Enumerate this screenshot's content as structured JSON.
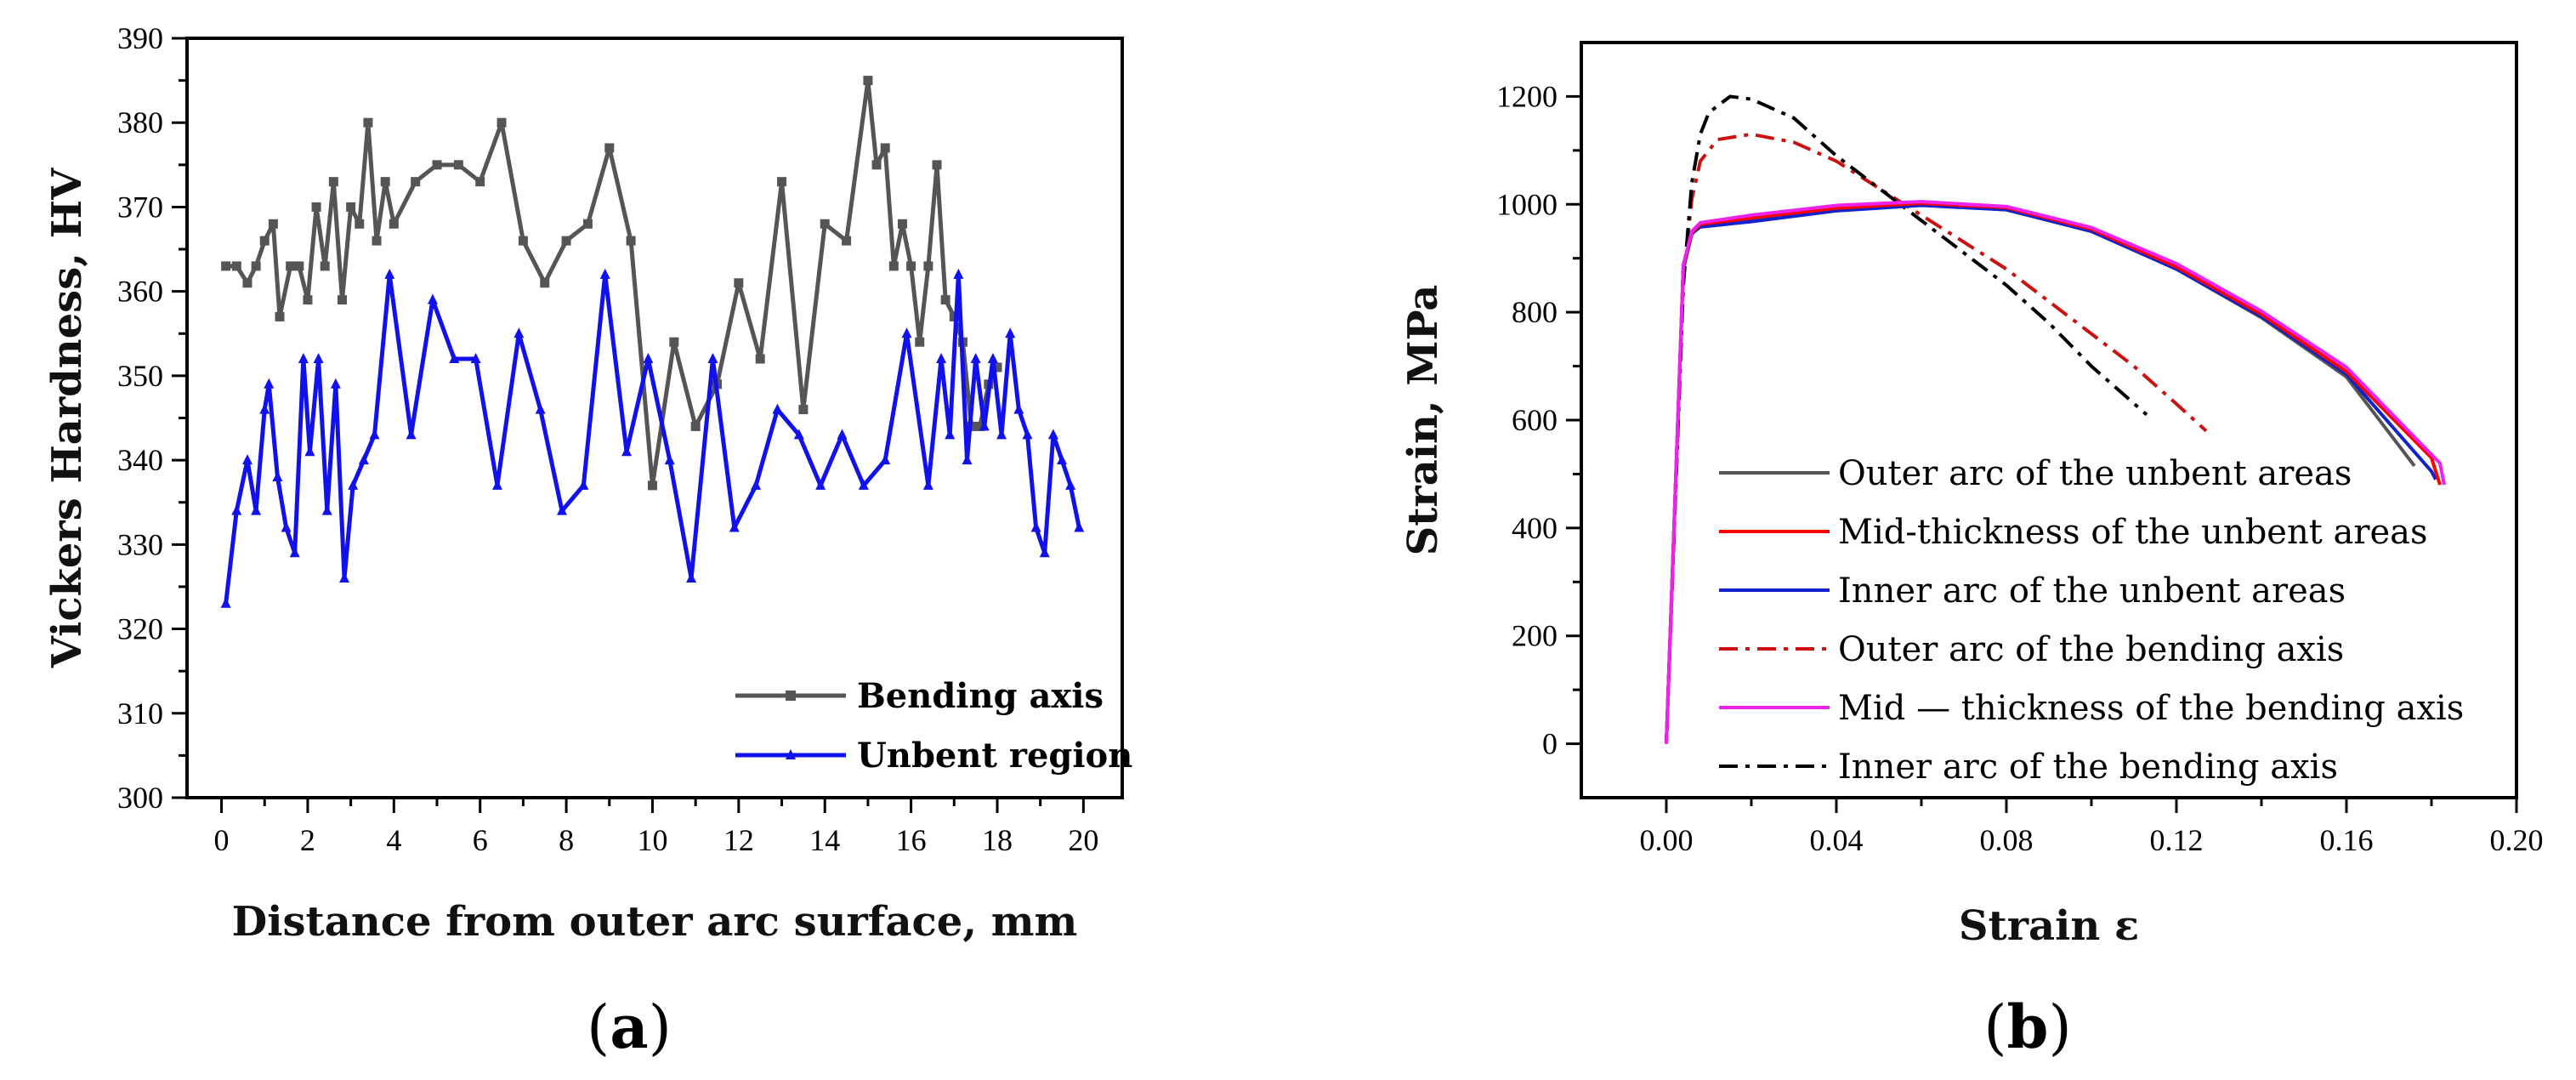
{
  "chart_data": [
    {
      "type": "line",
      "panel_label": "(a)",
      "panel_letter": "a",
      "xlabel": "Distance from outer arc surface, mm",
      "ylabel": "Vickers Hardness, HV",
      "xlim": [
        -0.8,
        20.9
      ],
      "ylim": [
        300,
        390
      ],
      "xticks": [
        0,
        2,
        4,
        6,
        8,
        10,
        12,
        14,
        16,
        18,
        20
      ],
      "yticks": [
        300,
        310,
        320,
        330,
        340,
        350,
        360,
        370,
        380,
        390
      ],
      "legend_position": "bottom-right",
      "series": [
        {
          "name": "Bending axis",
          "color": "#555555",
          "marker": "square",
          "x": [
            0.1,
            0.35,
            0.6,
            0.8,
            1.0,
            1.2,
            1.35,
            1.6,
            1.8,
            2.0,
            2.2,
            2.4,
            2.6,
            2.8,
            3.0,
            3.2,
            3.4,
            3.6,
            3.8,
            4.0,
            4.5,
            5.0,
            5.5,
            6.0,
            6.5,
            7.0,
            7.5,
            8.0,
            8.5,
            9.0,
            9.5,
            10.0,
            10.5,
            11.0,
            11.5,
            12.0,
            12.5,
            13.0,
            13.5,
            14.0,
            14.5,
            15.0,
            15.2,
            15.4,
            15.6,
            15.8,
            16.0,
            16.2,
            16.4,
            16.6,
            16.8,
            17.0,
            17.2,
            17.4,
            17.6,
            17.8,
            18.0
          ],
          "values": [
            363,
            363,
            361,
            363,
            366,
            368,
            357,
            363,
            363,
            359,
            370,
            363,
            373,
            359,
            370,
            368,
            380,
            366,
            373,
            368,
            373,
            375,
            375,
            373,
            380,
            366,
            361,
            366,
            368,
            377,
            366,
            337,
            354,
            344,
            349,
            361,
            352,
            373,
            346,
            368,
            366,
            385,
            375,
            377,
            363,
            368,
            363,
            354,
            363,
            375,
            359,
            357,
            354,
            344,
            344,
            349,
            351
          ]
        },
        {
          "name": "Unbent region",
          "color": "#1111ee",
          "marker": "triangle",
          "x": [
            0.1,
            0.35,
            0.6,
            0.8,
            1.0,
            1.1,
            1.3,
            1.5,
            1.7,
            1.9,
            2.05,
            2.25,
            2.45,
            2.65,
            2.85,
            3.05,
            3.3,
            3.55,
            3.9,
            4.4,
            4.9,
            5.4,
            5.9,
            6.4,
            6.9,
            7.4,
            7.9,
            8.4,
            8.9,
            9.4,
            9.9,
            10.4,
            10.9,
            11.4,
            11.9,
            12.4,
            12.9,
            13.4,
            13.9,
            14.4,
            14.9,
            15.4,
            15.9,
            16.4,
            16.7,
            16.9,
            17.1,
            17.3,
            17.5,
            17.7,
            17.9,
            18.1,
            18.3,
            18.5,
            18.7,
            18.9,
            19.1,
            19.3,
            19.5,
            19.7,
            19.9
          ],
          "values": [
            323,
            334,
            340,
            334,
            346,
            349,
            338,
            332,
            329,
            352,
            341,
            352,
            334,
            349,
            326,
            337,
            340,
            343,
            362,
            343,
            359,
            352,
            352,
            337,
            355,
            346,
            334,
            337,
            362,
            341,
            352,
            340,
            326,
            352,
            332,
            337,
            346,
            343,
            337,
            343,
            337,
            340,
            355,
            337,
            352,
            343,
            362,
            340,
            352,
            344,
            352,
            343,
            355,
            346,
            343,
            332,
            329,
            343,
            340,
            337,
            332
          ]
        }
      ]
    },
    {
      "type": "line",
      "panel_label": "(b)",
      "panel_letter": "b",
      "xlabel": "Strain ε",
      "ylabel": "Strain, MPa",
      "xlim": [
        -0.02,
        0.2
      ],
      "ylim": [
        -100,
        1300
      ],
      "xticks": [
        0.0,
        0.04,
        0.08,
        0.12,
        0.16,
        0.2
      ],
      "xtick_labels": [
        "0.00",
        "0.04",
        "0.08",
        "0.12",
        "0.16",
        "0.20"
      ],
      "yticks": [
        0,
        200,
        400,
        600,
        800,
        1000,
        1200
      ],
      "legend_position": "bottom-left",
      "series": [
        {
          "name": "Outer arc of the unbent areas",
          "color": "#555555",
          "dash": "solid",
          "x": [
            0.0,
            0.004,
            0.006,
            0.008,
            0.02,
            0.04,
            0.06,
            0.08,
            0.1,
            0.12,
            0.14,
            0.16,
            0.176
          ],
          "values": [
            0,
            880,
            945,
            960,
            970,
            990,
            1000,
            990,
            950,
            880,
            790,
            680,
            515
          ]
        },
        {
          "name": "Mid-thickness of the unbent areas",
          "color": "#ff0000",
          "dash": "solid",
          "x": [
            0.0,
            0.004,
            0.006,
            0.008,
            0.02,
            0.04,
            0.06,
            0.08,
            0.1,
            0.12,
            0.14,
            0.16,
            0.18,
            0.182
          ],
          "values": [
            0,
            885,
            948,
            963,
            975,
            993,
            1002,
            994,
            954,
            884,
            796,
            690,
            530,
            480
          ]
        },
        {
          "name": "Inner arc of the unbent areas",
          "color": "#1122cc",
          "dash": "solid",
          "x": [
            0.0,
            0.004,
            0.006,
            0.008,
            0.02,
            0.04,
            0.06,
            0.08,
            0.1,
            0.12,
            0.14,
            0.16,
            0.18,
            0.181
          ],
          "values": [
            0,
            882,
            946,
            958,
            968,
            988,
            998,
            990,
            950,
            880,
            792,
            685,
            505,
            490
          ]
        },
        {
          "name": "Outer arc of the bending axis",
          "color": "#cc1111",
          "dash": "dashdot",
          "x": [
            0.0,
            0.004,
            0.006,
            0.008,
            0.012,
            0.02,
            0.03,
            0.04,
            0.05,
            0.06,
            0.07,
            0.08,
            0.09,
            0.1,
            0.11,
            0.12,
            0.127
          ],
          "values": [
            0,
            860,
            1010,
            1080,
            1120,
            1130,
            1115,
            1080,
            1030,
            980,
            930,
            880,
            820,
            760,
            700,
            630,
            580
          ]
        },
        {
          "name": "Mid — thickness of the bending axis",
          "color": "#ee22ee",
          "dash": "solid",
          "x": [
            0.0,
            0.004,
            0.006,
            0.008,
            0.02,
            0.04,
            0.06,
            0.08,
            0.1,
            0.12,
            0.14,
            0.16,
            0.182,
            0.183
          ],
          "values": [
            0,
            888,
            950,
            966,
            980,
            998,
            1005,
            996,
            957,
            890,
            802,
            698,
            520,
            480
          ]
        },
        {
          "name": "Inner arc of the bending axis",
          "color": "#000000",
          "dash": "dashdot",
          "x": [
            0.0,
            0.004,
            0.006,
            0.008,
            0.01,
            0.015,
            0.02,
            0.03,
            0.04,
            0.05,
            0.06,
            0.07,
            0.08,
            0.09,
            0.1,
            0.113
          ],
          "values": [
            0,
            850,
            1040,
            1130,
            1170,
            1200,
            1195,
            1160,
            1090,
            1030,
            970,
            910,
            850,
            780,
            700,
            610
          ]
        }
      ]
    }
  ]
}
